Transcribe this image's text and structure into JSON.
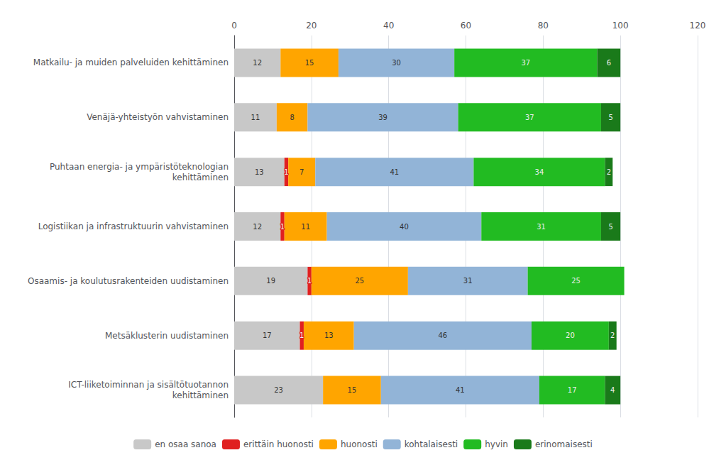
{
  "chart_data": {
    "type": "bar",
    "orientation": "horizontal",
    "stacked": true,
    "categories": [
      "Matkailu- ja muiden palveluiden kehittäminen",
      "Venäjä-yhteistyön vahvistaminen",
      "Puhtaan energia- ja ympäristöteknologian\nkehittäminen",
      "Logistiikan ja infrastruktuurin vahvistaminen",
      "Osaamis- ja koulutusrakenteiden uudistaminen",
      "Metsäklusterin uudistaminen",
      "ICT-liiketoiminnan ja sisältötuotannon\nkehittäminen"
    ],
    "series": [
      {
        "name": "en osaa sanoa",
        "color": "#c8c8c8",
        "values": [
          12,
          11,
          13,
          12,
          19,
          17,
          23
        ]
      },
      {
        "name": "erittäin huonosti",
        "color": "#e02020",
        "values": [
          0,
          0,
          1,
          1,
          1,
          1,
          0
        ]
      },
      {
        "name": "huonosti",
        "color": "#ffa500",
        "values": [
          15,
          8,
          7,
          11,
          25,
          13,
          15
        ]
      },
      {
        "name": "kohtalaisesti",
        "color": "#92b4d7",
        "values": [
          30,
          39,
          41,
          40,
          31,
          46,
          41
        ]
      },
      {
        "name": "hyvin",
        "color": "#22bb22",
        "values": [
          37,
          37,
          34,
          31,
          25,
          20,
          17
        ]
      },
      {
        "name": "erinomaisesti",
        "color": "#1a7a1a",
        "values": [
          6,
          5,
          2,
          5,
          0,
          2,
          4
        ]
      }
    ],
    "xlim": [
      0,
      120
    ],
    "xticks": [
      0,
      20,
      40,
      60,
      80,
      100,
      120
    ],
    "grid": true,
    "legend": "bottom",
    "data_labels": true
  }
}
